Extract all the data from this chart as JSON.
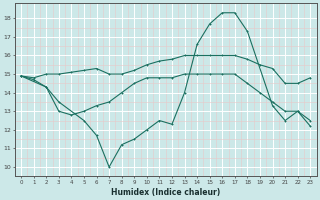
{
  "xlabel": "Humidex (Indice chaleur)",
  "bg_color": "#cce8e8",
  "grid_color": "#ffffff",
  "line_color": "#1a7060",
  "xlim": [
    -0.5,
    23.5
  ],
  "ylim": [
    9.5,
    18.8
  ],
  "xticks": [
    0,
    1,
    2,
    3,
    4,
    5,
    6,
    7,
    8,
    9,
    10,
    11,
    12,
    13,
    14,
    15,
    16,
    17,
    18,
    19,
    20,
    21,
    22,
    23
  ],
  "yticks": [
    10,
    11,
    12,
    13,
    14,
    15,
    16,
    17,
    18
  ],
  "line1_x": [
    0,
    1,
    2,
    3,
    4,
    5,
    6,
    7,
    8,
    9,
    10,
    11,
    12,
    13,
    14,
    15,
    16,
    17,
    18,
    19,
    20,
    21,
    22,
    23
  ],
  "line1_y": [
    14.9,
    14.8,
    15.0,
    15.0,
    15.1,
    15.2,
    15.3,
    15.0,
    15.0,
    15.2,
    15.5,
    15.7,
    15.8,
    16.0,
    16.0,
    16.0,
    16.0,
    16.0,
    15.8,
    15.5,
    15.3,
    14.5,
    14.5,
    14.8
  ],
  "line2_x": [
    0,
    1,
    2,
    3,
    4,
    5,
    6,
    7,
    8,
    9,
    10,
    11,
    12,
    13,
    14,
    15,
    16,
    17,
    18,
    19,
    20,
    21,
    22,
    23
  ],
  "line2_y": [
    14.9,
    14.7,
    14.3,
    13.0,
    12.8,
    13.0,
    13.3,
    13.5,
    14.0,
    14.5,
    14.8,
    14.8,
    14.8,
    15.0,
    15.0,
    15.0,
    15.0,
    15.0,
    14.5,
    14.0,
    13.5,
    13.0,
    13.0,
    12.5
  ],
  "line3_x": [
    0,
    2,
    3,
    5,
    6,
    7,
    8,
    9,
    10,
    11,
    12,
    13,
    14,
    15,
    16,
    17,
    18,
    20,
    21,
    22,
    23
  ],
  "line3_y": [
    14.9,
    14.3,
    13.5,
    12.5,
    11.7,
    10.0,
    11.2,
    11.5,
    12.0,
    12.5,
    12.3,
    14.0,
    16.6,
    17.7,
    18.3,
    18.3,
    17.3,
    13.3,
    12.5,
    13.0,
    12.2
  ]
}
